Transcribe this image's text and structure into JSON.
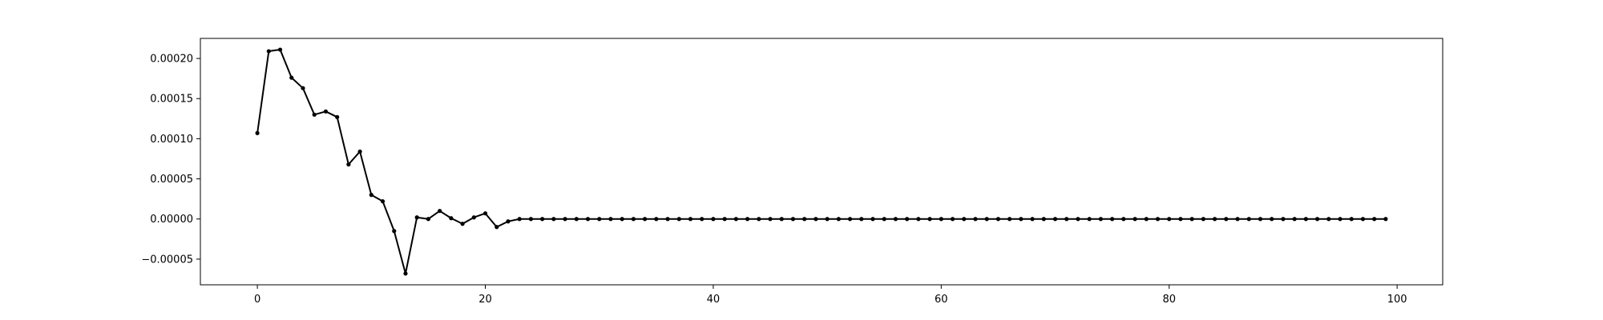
{
  "chart_data": {
    "type": "line",
    "title": "",
    "xlabel": "",
    "ylabel": "",
    "xlim": [
      -5,
      104
    ],
    "ylim": [
      -8.2e-05,
      0.000225
    ],
    "grid": false,
    "legend": "none",
    "x_ticks": [
      0,
      20,
      40,
      60,
      80,
      100
    ],
    "x_tick_labels": [
      "0",
      "20",
      "40",
      "60",
      "80",
      "100"
    ],
    "y_ticks": [
      -5e-05,
      0.0,
      5e-05,
      0.0001,
      0.00015,
      0.0002
    ],
    "y_tick_labels": [
      "−0.00005",
      "0.00000",
      "0.00005",
      "0.00010",
      "0.00015",
      "0.00020"
    ],
    "line_color": "#000000",
    "series": [
      {
        "x": [
          0,
          1,
          2,
          3,
          4,
          5,
          6,
          7,
          8,
          9,
          10,
          11,
          12,
          13,
          14,
          15,
          16,
          17,
          18,
          19,
          20,
          21,
          22,
          23,
          24,
          25,
          26,
          27,
          28,
          29,
          30,
          31,
          32,
          33,
          34,
          35,
          36,
          37,
          38,
          39,
          40,
          41,
          42,
          43,
          44,
          45,
          46,
          47,
          48,
          49,
          50,
          51,
          52,
          53,
          54,
          55,
          56,
          57,
          58,
          59,
          60,
          61,
          62,
          63,
          64,
          65,
          66,
          67,
          68,
          69,
          70,
          71,
          72,
          73,
          74,
          75,
          76,
          77,
          78,
          79,
          80,
          81,
          82,
          83,
          84,
          85,
          86,
          87,
          88,
          89,
          90,
          91,
          92,
          93,
          94,
          95,
          96,
          97,
          98,
          99
        ],
        "values": [
          0.000107,
          0.000209,
          0.000211,
          0.000176,
          0.000163,
          0.00013,
          0.000134,
          0.000127,
          6.8e-05,
          8.4e-05,
          3e-05,
          2.2e-05,
          -1.5e-05,
          -6.8e-05,
          2e-06,
          0.0,
          1e-05,
          1e-06,
          -6e-06,
          2e-06,
          7e-06,
          -1e-05,
          -3e-06,
          0.0,
          0.0,
          0.0,
          0.0,
          0.0,
          0.0,
          0.0,
          0.0,
          0.0,
          0.0,
          0.0,
          0.0,
          0.0,
          0.0,
          0.0,
          0.0,
          0.0,
          0.0,
          0.0,
          0.0,
          0.0,
          0.0,
          0.0,
          0.0,
          0.0,
          0.0,
          0.0,
          0.0,
          0.0,
          0.0,
          0.0,
          0.0,
          0.0,
          0.0,
          0.0,
          0.0,
          0.0,
          0.0,
          0.0,
          0.0,
          0.0,
          0.0,
          0.0,
          0.0,
          0.0,
          0.0,
          0.0,
          0.0,
          0.0,
          0.0,
          0.0,
          0.0,
          0.0,
          0.0,
          0.0,
          0.0,
          0.0,
          0.0,
          0.0,
          0.0,
          0.0,
          0.0,
          0.0,
          0.0,
          0.0,
          0.0,
          0.0,
          0.0,
          0.0,
          0.0,
          0.0,
          0.0,
          0.0,
          0.0,
          0.0,
          0.0,
          0.0
        ]
      }
    ]
  }
}
